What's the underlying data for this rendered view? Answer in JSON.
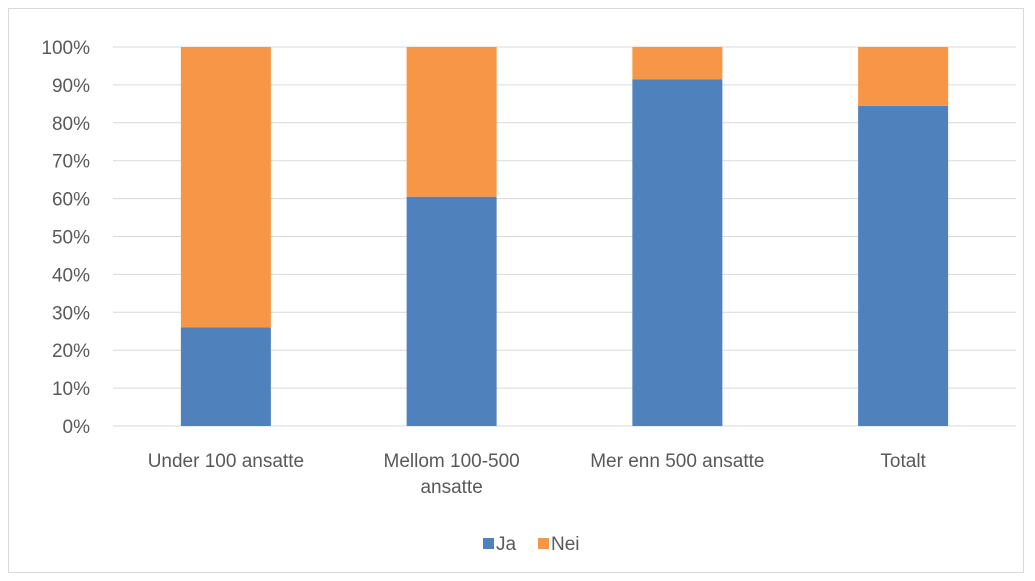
{
  "chart_data": {
    "type": "bar",
    "stacked": true,
    "percent_stacked": true,
    "categories": [
      [
        "Under 100 ansatte"
      ],
      [
        "Mellom 100-500",
        "ansatte"
      ],
      [
        "Mer enn 500 ansatte"
      ],
      [
        "Totalt"
      ]
    ],
    "series": [
      {
        "name": "Ja",
        "color": "#4f81bd",
        "values": [
          26,
          60.5,
          91.5,
          84.5
        ]
      },
      {
        "name": "Nei",
        "color": "#f79646",
        "values": [
          74,
          39.5,
          8.5,
          15.5
        ]
      }
    ],
    "ylim": [
      0,
      100
    ],
    "yticks": [
      "0%",
      "10%",
      "20%",
      "30%",
      "40%",
      "50%",
      "60%",
      "70%",
      "80%",
      "90%",
      "100%"
    ],
    "grid": true,
    "legend_position": "bottom",
    "title": "",
    "xlabel": "",
    "ylabel": ""
  }
}
